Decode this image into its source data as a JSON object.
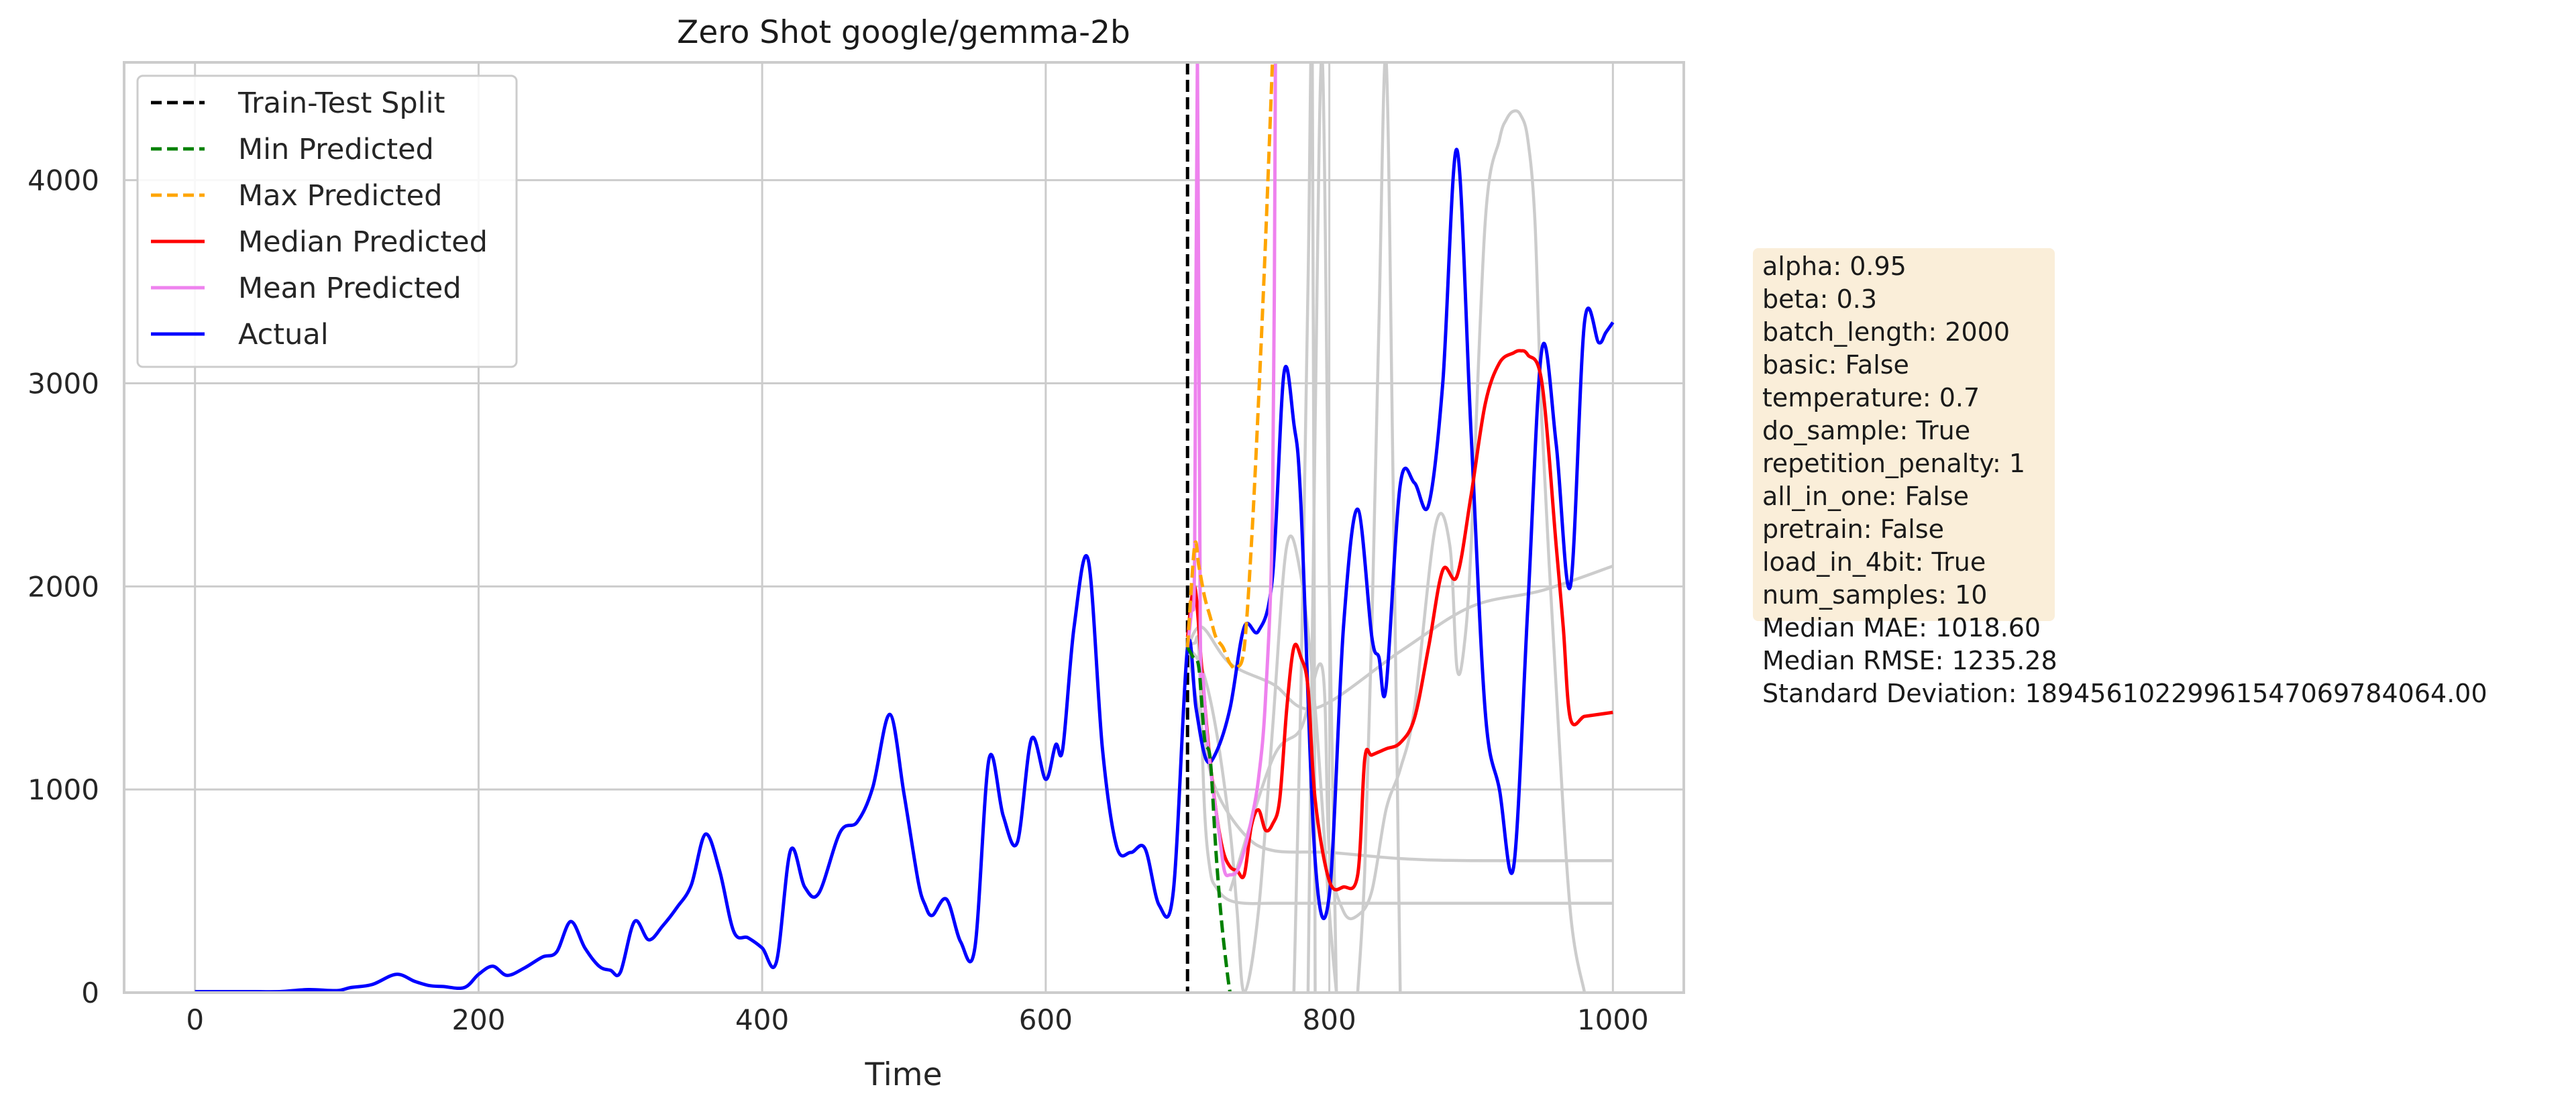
{
  "chart_data": {
    "type": "line",
    "title": "Zero Shot google/gemma-2b",
    "xlabel": "Time",
    "ylabel": "",
    "xlim": [
      -50,
      1050
    ],
    "ylim": [
      0,
      4580
    ],
    "xticks": [
      0,
      200,
      400,
      600,
      800,
      1000
    ],
    "yticks": [
      0,
      1000,
      2000,
      3000,
      4000
    ],
    "grid": true,
    "legend_position": "upper-left",
    "split_x": 700,
    "legend": [
      {
        "label": "Train-Test Split",
        "color": "#000000",
        "style": "dashed"
      },
      {
        "label": "Min Predicted",
        "color": "#008000",
        "style": "dashed"
      },
      {
        "label": "Max Predicted",
        "color": "#ffa500",
        "style": "dashed"
      },
      {
        "label": "Median Predicted",
        "color": "#ff0000",
        "style": "solid"
      },
      {
        "label": "Mean Predicted",
        "color": "#ee82ee",
        "style": "solid"
      },
      {
        "label": "Actual",
        "color": "#0000ff",
        "style": "solid"
      }
    ],
    "series": [
      {
        "name": "Actual",
        "color": "#0000ff",
        "x": [
          0,
          20,
          40,
          60,
          80,
          100,
          110,
          125,
          142,
          155,
          165,
          175,
          190,
          200,
          210,
          220,
          232,
          245,
          255,
          265,
          275,
          285,
          293,
          300,
          310,
          320,
          330,
          340,
          350,
          360,
          370,
          380,
          390,
          400,
          410,
          420,
          430,
          440,
          455,
          467,
          478,
          490,
          500,
          510,
          515,
          520,
          530,
          540,
          550,
          560,
          570,
          580,
          590,
          600,
          607,
          612,
          620,
          630,
          640,
          650,
          660,
          670,
          680,
          690,
          700,
          706,
          713,
          720,
          730,
          740,
          750,
          760,
          768,
          775,
          780,
          790,
          800,
          810,
          820,
          830,
          835,
          840,
          850,
          860,
          870,
          880,
          890,
          900,
          910,
          920,
          930,
          940,
          950,
          960,
          970,
          980,
          990,
          995,
          1000
        ],
        "y": [
          5,
          5,
          5,
          5,
          15,
          10,
          25,
          40,
          90,
          55,
          35,
          30,
          25,
          90,
          130,
          85,
          120,
          175,
          200,
          350,
          220,
          130,
          110,
          100,
          350,
          260,
          330,
          420,
          530,
          780,
          600,
          300,
          270,
          220,
          150,
          700,
          520,
          490,
          790,
          840,
          1010,
          1370,
          980,
          550,
          430,
          380,
          460,
          250,
          220,
          1150,
          870,
          740,
          1250,
          1050,
          1220,
          1200,
          1800,
          2130,
          1200,
          720,
          690,
          710,
          430,
          500,
          1700,
          1400,
          1150,
          1180,
          1400,
          1800,
          1780,
          2050,
          3050,
          2800,
          2400,
          650,
          480,
          1800,
          2380,
          1750,
          1650,
          1500,
          2500,
          2510,
          2400,
          3000,
          4150,
          2750,
          1380,
          1000,
          620,
          1900,
          3170,
          2700,
          2000,
          3300,
          3200,
          3250,
          3300
        ]
      },
      {
        "name": "Median Predicted",
        "color": "#ff0000",
        "x": [
          700,
          705,
          710,
          715,
          720,
          725,
          730,
          735,
          740,
          745,
          750,
          755,
          760,
          765,
          770,
          775,
          780,
          785,
          790,
          800,
          810,
          820,
          825,
          830,
          840,
          850,
          860,
          870,
          880,
          890,
          900,
          910,
          920,
          930,
          935,
          940,
          950,
          960,
          965,
          970,
          980,
          990,
          1000
        ],
        "y": [
          1750,
          2000,
          1600,
          1200,
          900,
          700,
          620,
          600,
          580,
          820,
          900,
          800,
          830,
          950,
          1400,
          1700,
          1650,
          1500,
          950,
          550,
          520,
          580,
          1150,
          1170,
          1200,
          1230,
          1350,
          1700,
          2080,
          2050,
          2450,
          2900,
          3100,
          3150,
          3160,
          3140,
          3000,
          2200,
          1800,
          1350,
          1360,
          1370,
          1380
        ]
      },
      {
        "name": "Mean Predicted",
        "color": "#ee82ee",
        "x": [
          700,
          703,
          705,
          707,
          709,
          711,
          714,
          718,
          722,
          726,
          730,
          735,
          740,
          745,
          750,
          755,
          760,
          762
        ],
        "y": [
          1700,
          1900,
          2150,
          4600,
          1800,
          1550,
          1250,
          1000,
          800,
          600,
          580,
          600,
          700,
          850,
          1050,
          1450,
          2400,
          4600
        ]
      },
      {
        "name": "Min Predicted",
        "color": "#008000",
        "x": [
          700,
          704,
          708,
          712,
          716,
          720,
          724,
          728,
          730
        ],
        "y": [
          1700,
          1650,
          1600,
          1250,
          1150,
          700,
          350,
          100,
          0
        ]
      },
      {
        "name": "Max Predicted",
        "color": "#ffa500",
        "x": [
          700,
          705,
          708,
          712,
          716,
          720,
          725,
          730,
          735,
          740,
          745,
          750,
          755,
          760
        ],
        "y": [
          1700,
          2200,
          2100,
          1950,
          1850,
          1750,
          1700,
          1620,
          1600,
          1700,
          2200,
          2900,
          3700,
          4600
        ]
      }
    ],
    "sample_series": [
      {
        "x": [
          700,
          710,
          730,
          760,
          790,
          850,
          900,
          950,
          1000
        ],
        "y": [
          1700,
          1800,
          1620,
          1520,
          1400,
          1680,
          1900,
          1980,
          2100
        ]
      },
      {
        "x": [
          700,
          710,
          720,
          740,
          760,
          800,
          850,
          900,
          1000
        ],
        "y": [
          1700,
          1300,
          1000,
          780,
          700,
          690,
          660,
          650,
          650
        ]
      },
      {
        "x": [
          700,
          705,
          708,
          712,
          716,
          720,
          728,
          740,
          760,
          790,
          850,
          900,
          1000
        ],
        "y": [
          1700,
          1720,
          1680,
          900,
          600,
          520,
          460,
          440,
          440,
          440,
          440,
          440,
          440
        ]
      },
      {
        "x": [
          700,
          710,
          720,
          730,
          735,
          740,
          750,
          760,
          770,
          780,
          790,
          800,
          805
        ],
        "y": [
          1700,
          1600,
          1300,
          800,
          400,
          0,
          400,
          1300,
          2200,
          2050,
          1400,
          400,
          0
        ]
      },
      {
        "x": [
          775,
          780,
          785,
          788,
          790
        ],
        "y": [
          0,
          1500,
          3500,
          4600,
          0
        ]
      },
      {
        "x": [
          785,
          790,
          795,
          800,
          805
        ],
        "y": [
          0,
          2800,
          4600,
          2000,
          0
        ]
      },
      {
        "x": [
          820,
          825,
          830,
          835,
          840,
          845,
          850
        ],
        "y": [
          0,
          600,
          1800,
          3300,
          4600,
          2500,
          0
        ]
      },
      {
        "x": [
          730,
          760,
          780,
          795,
          800,
          810,
          820,
          830,
          840,
          850,
          860,
          875,
          885,
          890,
          895,
          900,
          910,
          920,
          925,
          930,
          935,
          940,
          945,
          950,
          960,
          970,
          980
        ],
        "y": [
          500,
          1150,
          1300,
          1600,
          700,
          400,
          380,
          500,
          900,
          1100,
          1400,
          2300,
          2200,
          1600,
          1700,
          2200,
          3800,
          4200,
          4300,
          4340,
          4320,
          4200,
          3800,
          2800,
          1500,
          400,
          0
        ]
      }
    ],
    "stats_box": [
      "alpha: 0.95",
      "beta: 0.3",
      "batch_length: 2000",
      "basic: False",
      "temperature: 0.7",
      "do_sample: True",
      "repetition_penalty: 1",
      "all_in_one: False",
      "pretrain: False",
      "load_in_4bit: True",
      "num_samples: 10",
      "Median MAE: 1018.60",
      "Median RMSE: 1235.28",
      "Standard Deviation: 18945610229961547069784064.00"
    ],
    "stats_box_color": "#f5deb3"
  }
}
